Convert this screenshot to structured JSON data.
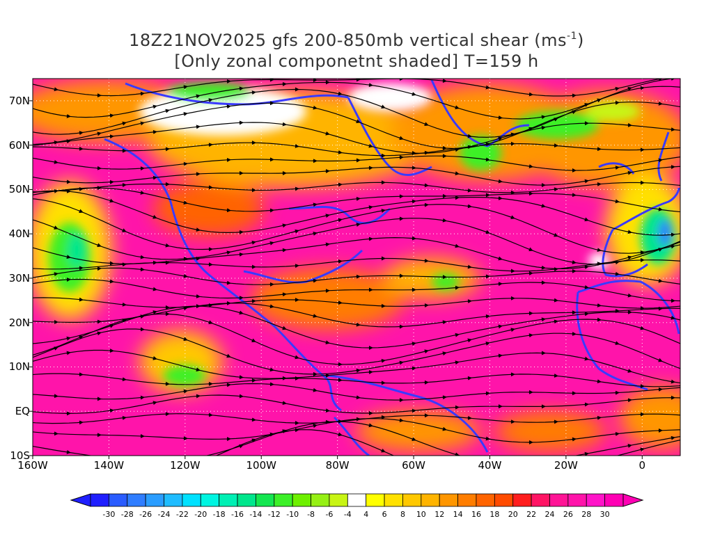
{
  "title": {
    "line1_prefix": "18Z21NOV2025 gfs 200-850mb vertical shear (ms",
    "line1_exp": "-1",
    "line1_suffix": ")",
    "line2": "[Only zonal componetnt shaded] T=159 h"
  },
  "map": {
    "type": "shaded contour map with streamlines",
    "lon_range": [
      -160,
      10
    ],
    "lat_range": [
      -10,
      75
    ],
    "lat_labels": [
      "70N",
      "60N",
      "50N",
      "40N",
      "30N",
      "20N",
      "10N",
      "EQ",
      "10S"
    ],
    "lon_labels": [
      "160W",
      "140W",
      "120W",
      "100W",
      "80W",
      "60W",
      "40W",
      "20W",
      "0"
    ],
    "grid_lines": "dotted",
    "coastline_color": "#3a3aff",
    "streamline_color": "#000000"
  },
  "colorbar": {
    "labels": [
      "-30",
      "-28",
      "-26",
      "-24",
      "-22",
      "-20",
      "-18",
      "-16",
      "-14",
      "-12",
      "-10",
      "-8",
      "-6",
      "-4",
      "4",
      "6",
      "8",
      "10",
      "12",
      "14",
      "16",
      "18",
      "20",
      "22",
      "24",
      "26",
      "28",
      "30"
    ],
    "colors": [
      "#1f1fff",
      "#2a5cff",
      "#2f7dff",
      "#2a9dff",
      "#1fbcff",
      "#00e1ff",
      "#00f5e1",
      "#00f0b4",
      "#00e68c",
      "#14e650",
      "#3cf028",
      "#6ef000",
      "#96f014",
      "#c8f514",
      "#ffffff",
      "#ffff00",
      "#ffe100",
      "#ffc800",
      "#ffb400",
      "#ff9600",
      "#ff7d00",
      "#ff6400",
      "#ff4b00",
      "#ff1e1e",
      "#ff1464",
      "#ff1496",
      "#ff14aa",
      "#ff14c8",
      "#ff00b4"
    ]
  }
}
